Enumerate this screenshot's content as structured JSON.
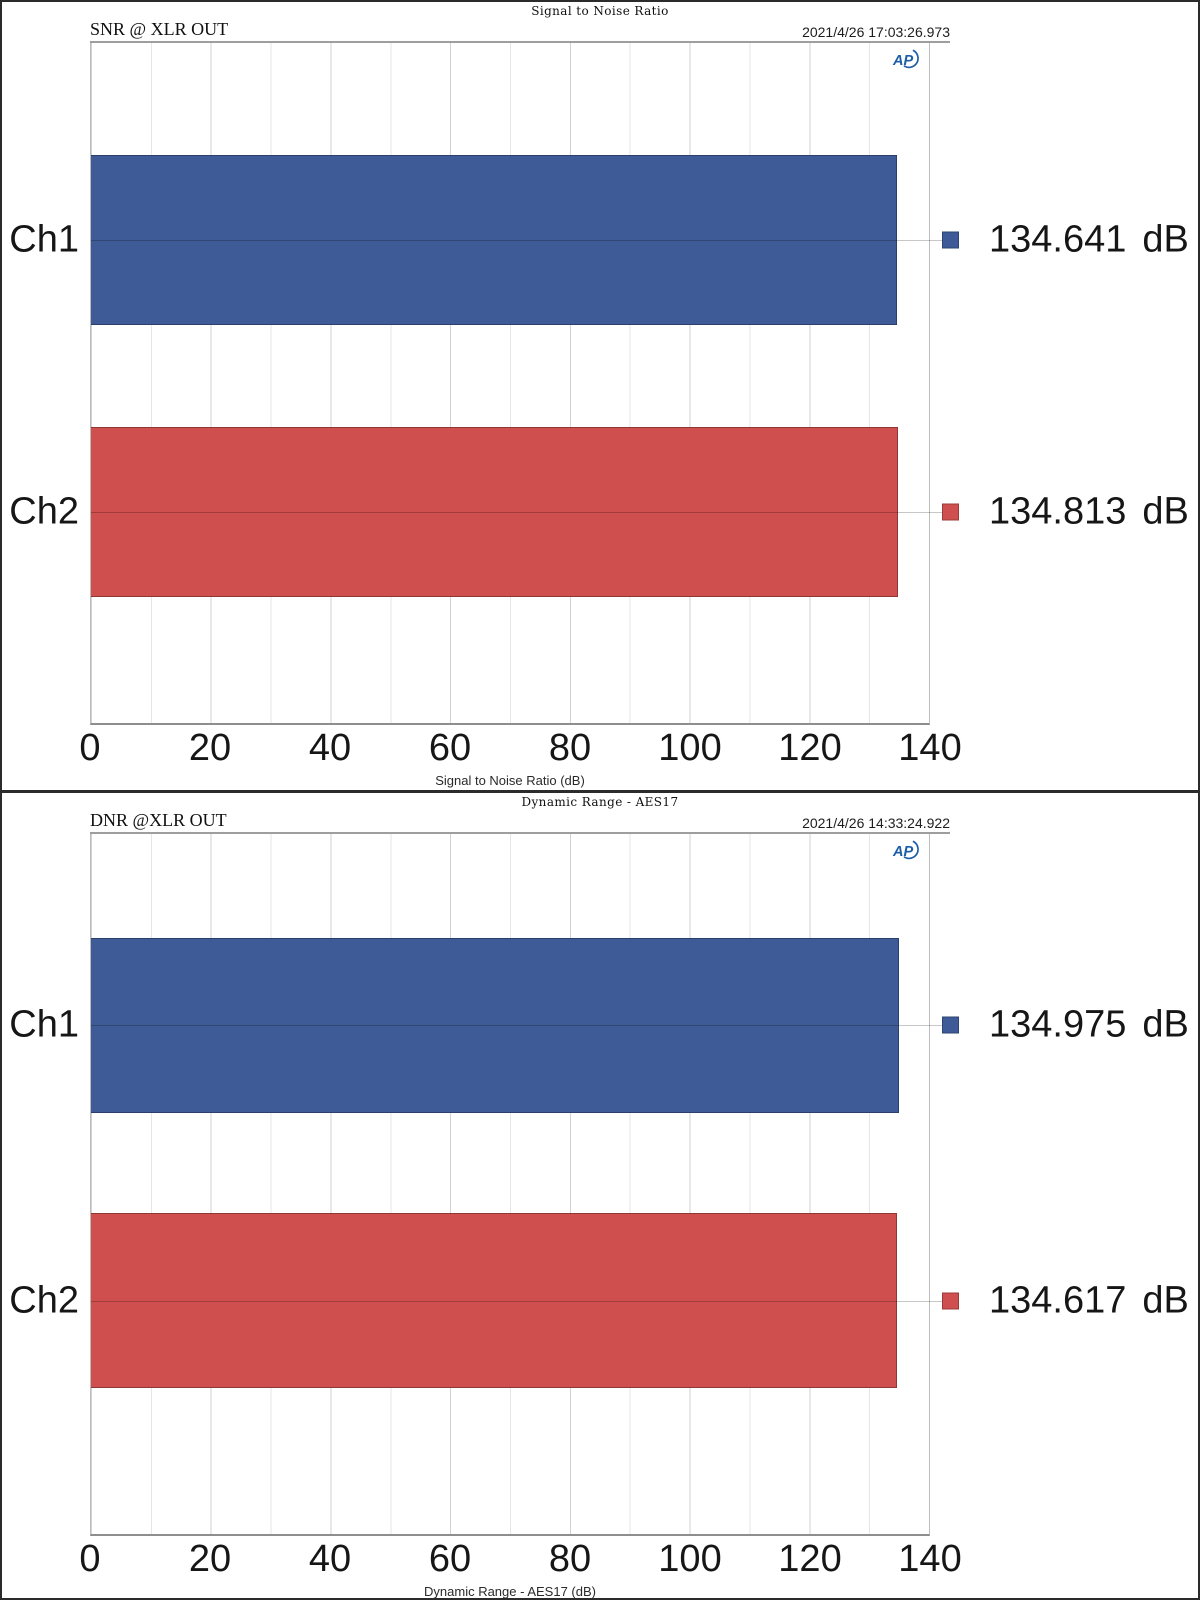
{
  "chart_data": [
    {
      "type": "bar",
      "orientation": "horizontal",
      "panel_title": "Signal to Noise Ratio",
      "header_left": "SNR @ XLR OUT",
      "timestamp": "2021/4/26 17:03:26.973",
      "logo": "AP",
      "categories": [
        "Ch1",
        "Ch2"
      ],
      "values": [
        134.641,
        134.813
      ],
      "unit": "dB",
      "bar_colors": [
        "#3e5b98",
        "#ce4f4d"
      ],
      "xlabel": "Signal to Noise Ratio (dB)",
      "xlim": [
        0,
        140
      ],
      "xticks": [
        0,
        20,
        40,
        60,
        80,
        100,
        120,
        140
      ],
      "minor_grid_step": 10,
      "grid": true,
      "legend_position": "right"
    },
    {
      "type": "bar",
      "orientation": "horizontal",
      "panel_title": "Dynamic Range - AES17",
      "header_left": "DNR @XLR OUT",
      "timestamp": "2021/4/26 14:33:24.922",
      "logo": "AP",
      "categories": [
        "Ch1",
        "Ch2"
      ],
      "values": [
        134.975,
        134.617
      ],
      "unit": "dB",
      "bar_colors": [
        "#3e5b98",
        "#ce4f4d"
      ],
      "xlabel": "Dynamic Range - AES17 (dB)",
      "xlim": [
        0,
        140
      ],
      "xticks": [
        0,
        20,
        40,
        60,
        80,
        100,
        120,
        140
      ],
      "minor_grid_step": 10,
      "grid": true,
      "legend_position": "right"
    }
  ],
  "colors": {
    "ch1_blue": "#3e5b98",
    "ch2_red": "#ce4f4d",
    "logo_blue": "#1c5da8",
    "grid_minor": "#e6e6e6",
    "grid_major": "#d2d2d2",
    "axis_line": "#8e8e8e",
    "text": "#161616"
  }
}
